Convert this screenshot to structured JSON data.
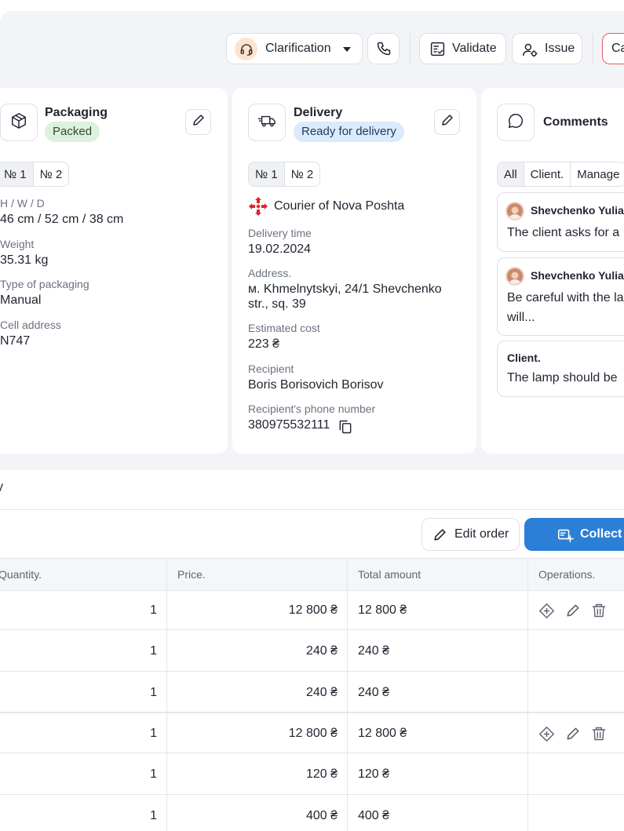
{
  "toolbar": {
    "clarification_label": "Clarification",
    "validate_label": "Validate",
    "issue_label": "Issue",
    "cancel_label": "Ca",
    "icons": [
      "headset-icon",
      "chevron-down-icon",
      "phone-icon",
      "checklist-icon",
      "user-gear-icon"
    ]
  },
  "packaging": {
    "title": "Packaging",
    "status": "Packed",
    "tabs": [
      "№ 1",
      "№ 2"
    ],
    "fields": [
      {
        "label": "H / W / D",
        "value": "46 cm / 52 cm / 38 cm"
      },
      {
        "label": "Weight",
        "value": "35.31 kg"
      },
      {
        "label": "Type of packaging",
        "value": "Manual"
      },
      {
        "label": "Cell address",
        "value": "N747"
      }
    ]
  },
  "delivery": {
    "title": "Delivery",
    "status": "Ready for delivery",
    "tabs": [
      "№ 1",
      "№ 2"
    ],
    "carrier": "Courier of Nova Poshta",
    "fields": [
      {
        "label": "Delivery time",
        "value": "19.02.2024"
      },
      {
        "label": "Address.",
        "value": "м. Khmelnytskyi, 24/1 Shevchenko",
        "value2": "str., sq. 39"
      },
      {
        "label": "Estimated cost",
        "value": "223 ₴"
      },
      {
        "label": "Recipient",
        "value": "Boris Borisovich Borisov"
      },
      {
        "label": "Recipient's phone number",
        "value": "380975532111"
      }
    ]
  },
  "comments": {
    "title": "Comments",
    "filters": [
      "All",
      "Client.",
      "Manage"
    ],
    "items": [
      {
        "author": "Shevchenko Yulia",
        "text": "The client asks for a"
      },
      {
        "author": "Shevchenko Yulia",
        "text": "Be careful with the la",
        "text2": "will..."
      },
      {
        "author": "Client.",
        "text": "The lamp should be"
      }
    ]
  },
  "section": {
    "title_fragment": "y"
  },
  "actions": {
    "edit_order_label": "Edit order",
    "collect_label": "Collect"
  },
  "table": {
    "headers": [
      "Quantity.",
      "Price.",
      "Total amount",
      "Operations."
    ],
    "rows": [
      {
        "quantity": "1",
        "price": "12 800 ₴",
        "total": "12 800 ₴",
        "ops": true
      },
      {
        "quantity": "1",
        "price": "240 ₴",
        "total": "240 ₴",
        "ops": false
      },
      {
        "quantity": "1",
        "price": "240 ₴",
        "total": "240 ₴",
        "ops": false
      },
      {
        "quantity": "1",
        "price": "12 800 ₴",
        "total": "12 800 ₴",
        "ops": true
      },
      {
        "quantity": "1",
        "price": "120 ₴",
        "total": "120 ₴",
        "ops": false
      },
      {
        "quantity": "1",
        "price": "400 ₴",
        "total": "400 ₴",
        "ops": false
      }
    ]
  },
  "colors": {
    "accent": "#2b7fd6",
    "danger_border": "#e35d5d",
    "packed_bg": "#dcf2dc",
    "delivery_bg": "#dbeafc",
    "carrier_logo": "#e3242b"
  }
}
